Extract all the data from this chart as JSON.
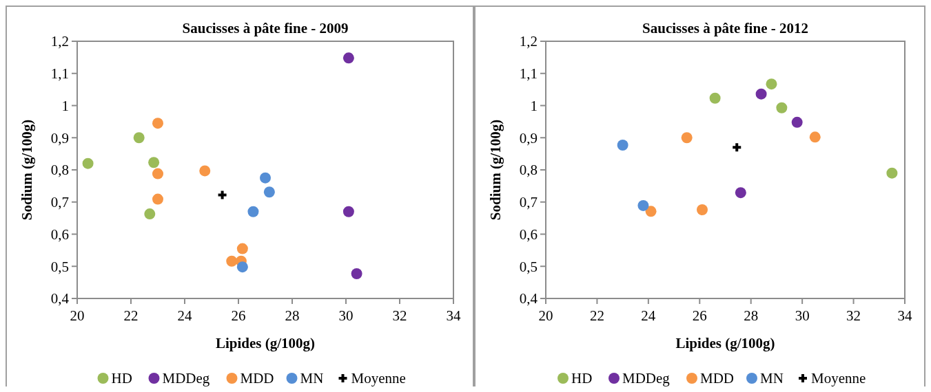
{
  "chart_data": [
    {
      "type": "scatter",
      "title": "Saucisses à pâte fine - 2009",
      "xlabel": "Lipides (g/100g)",
      "ylabel": "Sodium (g/100g)",
      "xlim": [
        20,
        34
      ],
      "xticks": [
        20,
        22,
        24,
        26,
        28,
        30,
        32,
        34
      ],
      "ylim": [
        0.4,
        1.2
      ],
      "yticks": [
        {
          "value": 0.4,
          "label": "0,4"
        },
        {
          "value": 0.5,
          "label": "0,5"
        },
        {
          "value": 0.6,
          "label": "0,6"
        },
        {
          "value": 0.7,
          "label": "0,7"
        },
        {
          "value": 0.8,
          "label": "0,8"
        },
        {
          "value": 0.9,
          "label": "0,9"
        },
        1,
        {
          "value": 1.1,
          "label": "1,1"
        },
        {
          "value": 1.2,
          "label": "1,2"
        }
      ],
      "grid": false,
      "legend": "bottom",
      "series": [
        {
          "name": "HD",
          "color": "#9bbb59",
          "marker": "circle",
          "x": [
            20.4,
            22.3,
            22.85,
            22.7
          ],
          "values": [
            0.82,
            0.9,
            0.823,
            0.663
          ]
        },
        {
          "name": "MDDeg",
          "color": "#7030a0",
          "marker": "circle",
          "x": [
            30.1,
            30.1,
            30.4
          ],
          "values": [
            1.148,
            0.67,
            0.477
          ]
        },
        {
          "name": "MDD",
          "color": "#f79646",
          "marker": "circle",
          "x": [
            23,
            23,
            23,
            24.75,
            26.15,
            25.75,
            26.1
          ],
          "values": [
            0.945,
            0.788,
            0.709,
            0.797,
            0.555,
            0.516,
            0.516
          ]
        },
        {
          "name": "MN",
          "color": "#558ed5",
          "marker": "circle",
          "x": [
            27,
            27.15,
            26.55,
            26.15
          ],
          "values": [
            0.775,
            0.731,
            0.67,
            0.498
          ]
        },
        {
          "name": "Moyenne",
          "color": "#000000",
          "marker": "cross",
          "x": [
            25.4
          ],
          "values": [
            0.722
          ]
        }
      ]
    },
    {
      "type": "scatter",
      "title": "Saucisses à pâte fine - 2012",
      "xlabel": "Lipides (g/100g)",
      "ylabel": "Sodium (g/100g)",
      "xlim": [
        20,
        34
      ],
      "xticks": [
        20,
        22,
        24,
        26,
        28,
        30,
        32,
        34
      ],
      "ylim": [
        0.4,
        1.2
      ],
      "yticks": [
        {
          "value": 0.4,
          "label": "0,4"
        },
        {
          "value": 0.5,
          "label": "0,5"
        },
        {
          "value": 0.6,
          "label": "0,6"
        },
        {
          "value": 0.7,
          "label": "0,7"
        },
        {
          "value": 0.8,
          "label": "0,8"
        },
        {
          "value": 0.9,
          "label": "0,9"
        },
        1,
        {
          "value": 1.1,
          "label": "1,1"
        },
        {
          "value": 1.2,
          "label": "1,2"
        }
      ],
      "grid": false,
      "legend": "bottom",
      "series": [
        {
          "name": "HD",
          "color": "#9bbb59",
          "marker": "circle",
          "x": [
            26.6,
            28.8,
            29.2,
            33.5
          ],
          "values": [
            1.023,
            1.067,
            0.993,
            0.79
          ]
        },
        {
          "name": "MDDeg",
          "color": "#7030a0",
          "marker": "circle",
          "x": [
            28.4,
            29.8,
            27.6
          ],
          "values": [
            1.036,
            0.948,
            0.729
          ]
        },
        {
          "name": "MDD",
          "color": "#f79646",
          "marker": "circle",
          "x": [
            25.5,
            30.5,
            24.1,
            26.1
          ],
          "values": [
            0.9,
            0.902,
            0.671,
            0.676
          ]
        },
        {
          "name": "MN",
          "color": "#558ed5",
          "marker": "circle",
          "x": [
            23,
            23.8
          ],
          "values": [
            0.877,
            0.689
          ]
        },
        {
          "name": "Moyenne",
          "color": "#000000",
          "marker": "cross",
          "x": [
            27.45
          ],
          "values": [
            0.87
          ]
        }
      ]
    }
  ]
}
